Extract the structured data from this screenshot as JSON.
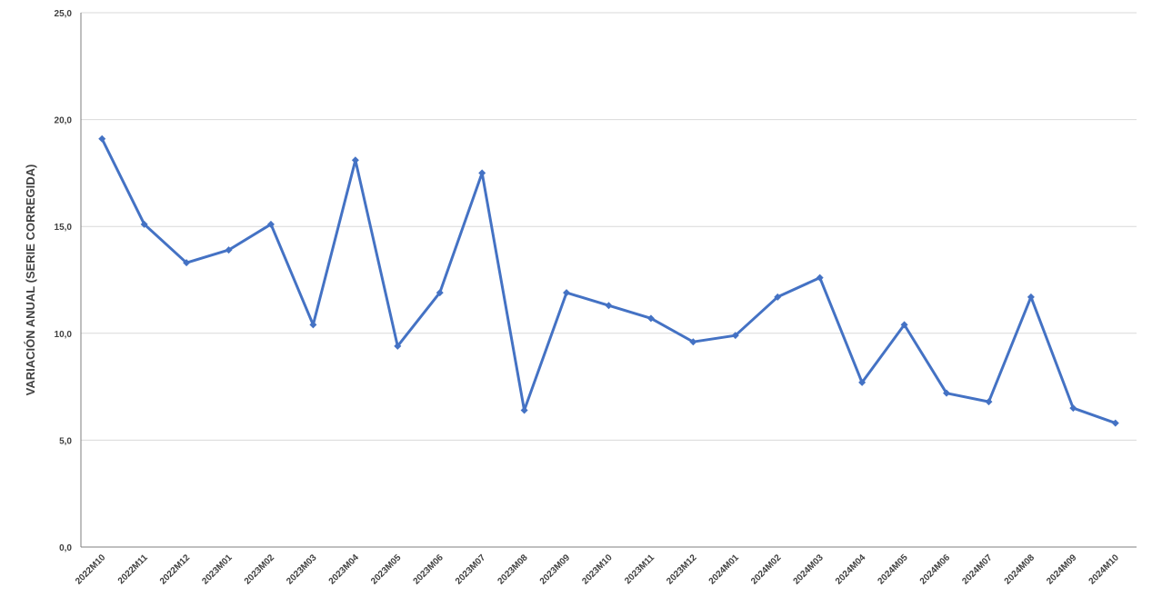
{
  "chart_data": {
    "type": "line",
    "title": "",
    "xlabel": "",
    "ylabel": "VARIACIÓN ANUAL (SERIE CORREGIDA)",
    "ylim": [
      0,
      25
    ],
    "y_ticks": [
      0,
      5,
      10,
      15,
      20,
      25
    ],
    "y_tick_labels": [
      "0,0",
      "5,0",
      "10,0",
      "15,0",
      "20,0",
      "25,0"
    ],
    "grid": true,
    "legend": "none",
    "categories": [
      "2022M10",
      "2022M11",
      "2022M12",
      "2023M01",
      "2023M02",
      "2023M03",
      "2023M04",
      "2023M05",
      "2023M06",
      "2023M07",
      "2023M08",
      "2023M09",
      "2023M10",
      "2023M11",
      "2023M12",
      "2024M01",
      "2024M02",
      "2024M03",
      "2024M04",
      "2024M05",
      "2024M06",
      "2024M07",
      "2024M08",
      "2024M09",
      "2024M10"
    ],
    "series": [
      {
        "color": "#4472c4",
        "marker": "diamond",
        "values": [
          19.1,
          15.1,
          13.3,
          13.9,
          15.1,
          10.4,
          18.1,
          9.4,
          11.9,
          17.5,
          6.4,
          11.9,
          11.3,
          10.7,
          9.6,
          9.9,
          11.7,
          12.6,
          7.7,
          10.4,
          7.2,
          6.8,
          11.7,
          6.5,
          5.8
        ]
      }
    ]
  }
}
